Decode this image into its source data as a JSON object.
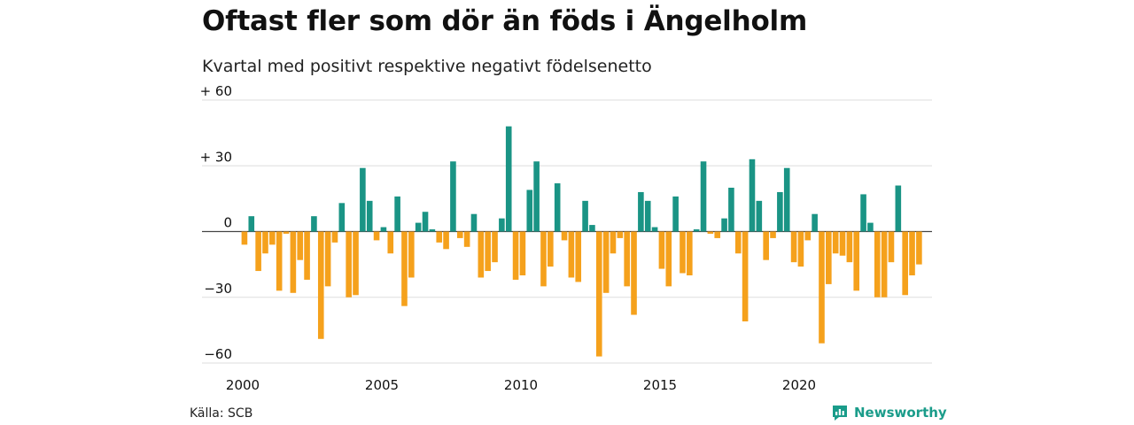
{
  "title": "Oftast fler som dör än föds i Ängelholm",
  "subtitle": "Kvartal med positivt respektive negativt födelsenetto",
  "source": "Källa: SCB",
  "brand": {
    "name": "Newsworthy",
    "icon": "newsworthy-logo-icon"
  },
  "colors": {
    "positive": "#1a9485",
    "negative": "#f5a11c",
    "grid": "#dddddd",
    "zero": "#444444"
  },
  "chart_data": {
    "type": "bar",
    "title": "Oftast fler som dör än föds i Ängelholm",
    "subtitle": "Kvartal med positivt respektive negativt födelsenetto",
    "ylim": [
      -60,
      60
    ],
    "yticks": [
      {
        "value": 60,
        "label": "+ 60"
      },
      {
        "value": 30,
        "label": "+ 30"
      },
      {
        "value": 0,
        "label": "0"
      },
      {
        "value": -30,
        "label": "−30"
      },
      {
        "value": -60,
        "label": "−60"
      }
    ],
    "xticks": [
      "2000",
      "2005",
      "2010",
      "2015",
      "2020"
    ],
    "start_year": 2000,
    "grid": true,
    "values": [
      -6,
      7,
      -18,
      -10,
      -6,
      -27,
      -1,
      -28,
      -13,
      -22,
      7,
      -49,
      -25,
      -5,
      13,
      -30,
      -29,
      29,
      14,
      -4,
      2,
      -10,
      16,
      -34,
      -21,
      4,
      9,
      1,
      -5,
      -8,
      32,
      -3,
      -7,
      8,
      -21,
      -18,
      -14,
      6,
      48,
      -22,
      -20,
      19,
      32,
      -25,
      -16,
      22,
      -4,
      -21,
      -23,
      14,
      3,
      -57,
      -28,
      -10,
      -3,
      -25,
      -38,
      18,
      14,
      2,
      -17,
      -25,
      16,
      -19,
      -20,
      1,
      32,
      -1,
      -3,
      6,
      20,
      -10,
      -41,
      33,
      14,
      -13,
      -3,
      18,
      29,
      -14,
      -16,
      -4,
      8,
      -51,
      -24,
      -10,
      -11,
      -14,
      -27,
      17,
      4,
      -30,
      -30,
      -14,
      21,
      -29,
      -20,
      -15
    ]
  }
}
